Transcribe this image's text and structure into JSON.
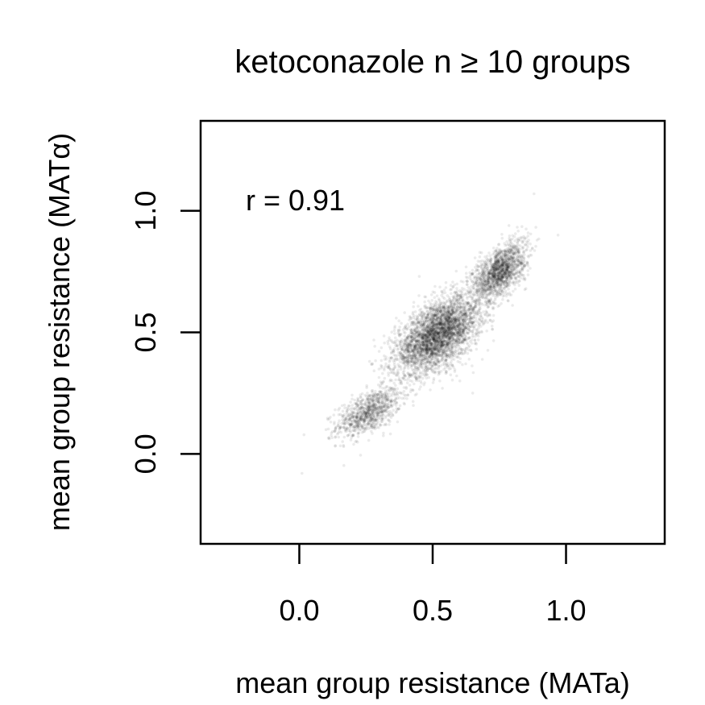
{
  "chart_data": {
    "type": "scatter",
    "title": "ketoconazole n ≥ 10 groups",
    "xlabel": "mean group resistance (MATa)",
    "ylabel": "mean group resistance (MATα)",
    "annotation": "r = 0.91",
    "correlation": 0.91,
    "xlim": [
      -0.37,
      1.37
    ],
    "ylim": [
      -0.37,
      1.37
    ],
    "x_ticks": [
      0.0,
      0.5,
      1.0
    ],
    "y_ticks": [
      0.0,
      0.5,
      1.0
    ],
    "x_tick_labels": [
      "0.0",
      "0.5",
      "1.0"
    ],
    "y_tick_labels": [
      "0.0",
      "0.5",
      "1.0"
    ],
    "grid": false,
    "legend": "none",
    "point_color": "#000000",
    "point_alpha": 0.08,
    "clusters": [
      {
        "center_x": 0.26,
        "center_y": 0.17,
        "sd_x": 0.06,
        "sd_y": 0.05,
        "n": 900
      },
      {
        "center_x": 0.52,
        "center_y": 0.49,
        "sd_x": 0.08,
        "sd_y": 0.08,
        "n": 3500
      },
      {
        "center_x": 0.75,
        "center_y": 0.75,
        "sd_x": 0.05,
        "sd_y": 0.06,
        "n": 1500
      }
    ],
    "extremes": [
      {
        "x": 0.01,
        "y": -0.08
      },
      {
        "x": 0.1,
        "y": 0.1
      },
      {
        "x": 0.45,
        "y": 0.73
      },
      {
        "x": 0.65,
        "y": 0.25
      },
      {
        "x": 0.97,
        "y": 0.9
      },
      {
        "x": 0.88,
        "y": 1.07
      }
    ]
  }
}
